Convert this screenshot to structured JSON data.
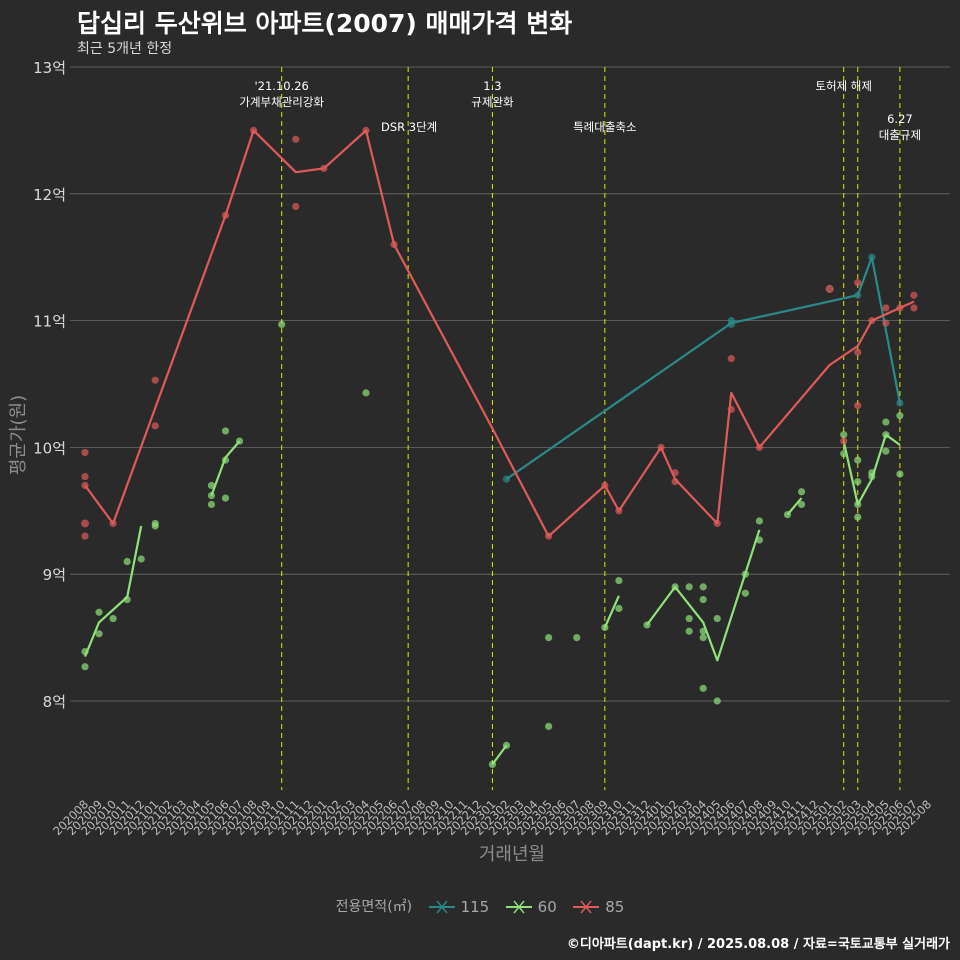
{
  "header": {
    "title": "답십리 두산위브 아파트(2007) 매매가격 변화",
    "subtitle": "최근 5개년 한정"
  },
  "footer": {
    "caption": "©디아파트(dapt.kr) / 2025.08.08 / 자료=국토교통부 실거래가"
  },
  "legend": {
    "title": "전용면적(㎡)",
    "entries": [
      {
        "label": "115",
        "color": "#2a8a8a"
      },
      {
        "label": "60",
        "color": "#8fe27a"
      },
      {
        "label": "85",
        "color": "#e05a5a"
      }
    ]
  },
  "chart_data": {
    "type": "line",
    "title": "답십리 두산위브 아파트(2007) 매매가격 변화",
    "subtitle": "최근 5개년 한정",
    "xlabel": "거래년월",
    "ylabel": "평균가(원)",
    "ylim": [
      7.3,
      13.0
    ],
    "y_ticks": [
      8,
      9,
      10,
      11,
      12,
      13
    ],
    "y_tick_labels": [
      "8억",
      "9억",
      "10억",
      "11억",
      "12억",
      "13억"
    ],
    "categories": [
      "202008",
      "202009",
      "202010",
      "202011",
      "202012",
      "202101",
      "202102",
      "202103",
      "202104",
      "202105",
      "202106",
      "202107",
      "202108",
      "202109",
      "202110",
      "202111",
      "202112",
      "202201",
      "202202",
      "202203",
      "202204",
      "202205",
      "202206",
      "202207",
      "202208",
      "202209",
      "202210",
      "202211",
      "202212",
      "202301",
      "202302",
      "202303",
      "202304",
      "202305",
      "202306",
      "202307",
      "202308",
      "202309",
      "202310",
      "202311",
      "202312",
      "202401",
      "202402",
      "202403",
      "202404",
      "202405",
      "202406",
      "202407",
      "202408",
      "202409",
      "202410",
      "202411",
      "202412",
      "202501",
      "202502",
      "202503",
      "202504",
      "202505",
      "202506",
      "202507",
      "202508"
    ],
    "grid": true,
    "legend_position": "bottom",
    "events": [
      {
        "month": "202110",
        "label": "'21.10.26\n가계부채관리강화",
        "row": 1
      },
      {
        "month": "202207",
        "label": "DSR 3단계",
        "row": 2
      },
      {
        "month": "202301",
        "label": "1.3\n규제완화",
        "row": 1
      },
      {
        "month": "202309",
        "label": "특례대출축소",
        "row": 2
      },
      {
        "month": "202502",
        "label": "토허제 해제",
        "row": 1
      },
      {
        "month": "202503",
        "label": "",
        "row": 0
      },
      {
        "month": "202506",
        "label": "6.27\n대출규제",
        "row": 3
      }
    ],
    "series": [
      {
        "name": "115",
        "color": "#2a8a8a",
        "segments": [
          [
            [
              "202302",
              9.75
            ],
            [
              "202406",
              10.98
            ],
            [
              "202503",
              11.2
            ],
            [
              "202504",
              11.5
            ],
            [
              "202506",
              10.35
            ]
          ]
        ],
        "points": [
          [
            "202302",
            9.75
          ],
          [
            "202406",
            11.0
          ],
          [
            "202406",
            10.97
          ],
          [
            "202503",
            11.2
          ],
          [
            "202504",
            11.5
          ],
          [
            "202506",
            10.35
          ]
        ],
        "cross_marks": [
          [
            "202501",
            11.25
          ]
        ]
      },
      {
        "name": "60",
        "color": "#8fe27a",
        "segments": [
          [
            [
              "202008",
              8.35
            ],
            [
              "202009",
              8.62
            ],
            [
              "202011",
              8.82
            ],
            [
              "202012",
              9.38
            ]
          ],
          [
            [
              "202105",
              9.62
            ],
            [
              "202106",
              9.92
            ],
            [
              "202107",
              10.05
            ]
          ],
          [
            [
              "202301",
              7.5
            ],
            [
              "202302",
              7.65
            ]
          ],
          [
            [
              "202309",
              8.58
            ],
            [
              "202310",
              8.83
            ]
          ],
          [
            [
              "202312",
              8.6
            ],
            [
              "202402",
              8.9
            ],
            [
              "202404",
              8.62
            ],
            [
              "202405",
              8.32
            ],
            [
              "202408",
              9.35
            ]
          ],
          [
            [
              "202410",
              9.47
            ],
            [
              "202411",
              9.6
            ]
          ],
          [
            [
              "202502",
              10.05
            ],
            [
              "202503",
              9.55
            ],
            [
              "202504",
              9.75
            ],
            [
              "202505",
              10.1
            ],
            [
              "202506",
              10.02
            ]
          ]
        ],
        "points": [
          [
            "202008",
            8.39
          ],
          [
            "202008",
            8.27
          ],
          [
            "202009",
            8.7
          ],
          [
            "202009",
            8.53
          ],
          [
            "202010",
            8.65
          ],
          [
            "202011",
            9.1
          ],
          [
            "202011",
            8.8
          ],
          [
            "202012",
            9.12
          ],
          [
            "202101",
            9.4
          ],
          [
            "202101",
            9.38
          ],
          [
            "202105",
            9.55
          ],
          [
            "202105",
            9.62
          ],
          [
            "202105",
            9.7
          ],
          [
            "202106",
            9.6
          ],
          [
            "202106",
            9.9
          ],
          [
            "202106",
            10.13
          ],
          [
            "202107",
            10.05
          ],
          [
            "202110",
            10.97
          ],
          [
            "202204",
            10.43
          ],
          [
            "202301",
            7.5
          ],
          [
            "202302",
            7.65
          ],
          [
            "202305",
            8.5
          ],
          [
            "202305",
            7.8
          ],
          [
            "202307",
            8.5
          ],
          [
            "202309",
            8.58
          ],
          [
            "202310",
            8.95
          ],
          [
            "202310",
            8.73
          ],
          [
            "202312",
            8.6
          ],
          [
            "202402",
            8.9
          ],
          [
            "202403",
            8.9
          ],
          [
            "202403",
            8.65
          ],
          [
            "202403",
            8.55
          ],
          [
            "202404",
            8.9
          ],
          [
            "202404",
            8.8
          ],
          [
            "202404",
            8.55
          ],
          [
            "202404",
            8.5
          ],
          [
            "202404",
            8.1
          ],
          [
            "202405",
            8.65
          ],
          [
            "202405",
            8.0
          ],
          [
            "202407",
            9.0
          ],
          [
            "202407",
            8.85
          ],
          [
            "202408",
            9.42
          ],
          [
            "202408",
            9.27
          ],
          [
            "202410",
            9.47
          ],
          [
            "202411",
            9.65
          ],
          [
            "202411",
            9.55
          ],
          [
            "202502",
            10.1
          ],
          [
            "202502",
            9.95
          ],
          [
            "202503",
            9.55
          ],
          [
            "202503",
            9.9
          ],
          [
            "202503",
            9.73
          ],
          [
            "202503",
            9.45
          ],
          [
            "202504",
            9.8
          ],
          [
            "202504",
            9.77
          ],
          [
            "202505",
            10.2
          ],
          [
            "202505",
            10.1
          ],
          [
            "202505",
            9.97
          ],
          [
            "202506",
            10.25
          ],
          [
            "202506",
            9.79
          ]
        ],
        "cross_marks": []
      },
      {
        "name": "85",
        "color": "#e05a5a",
        "segments": [
          [
            [
              "202008",
              9.7
            ],
            [
              "202010",
              9.4
            ],
            [
              "202106",
              11.83
            ],
            [
              "202108",
              12.5
            ],
            [
              "202111",
              12.17
            ],
            [
              "202201",
              12.2
            ],
            [
              "202204",
              12.5
            ],
            [
              "202206",
              11.6
            ],
            [
              "202301",
              10.15
            ],
            [
              "202305",
              9.3
            ],
            [
              "202309",
              9.7
            ],
            [
              "202310",
              9.5
            ],
            [
              "202401",
              10.0
            ],
            [
              "202402",
              9.75
            ],
            [
              "202405",
              9.4
            ],
            [
              "202406",
              10.43
            ],
            [
              "202408",
              10.0
            ],
            [
              "202501",
              10.65
            ],
            [
              "202503",
              10.8
            ],
            [
              "202504",
              11.0
            ],
            [
              "202506",
              11.1
            ],
            [
              "202507",
              11.15
            ]
          ]
        ],
        "points": [
          [
            "202008",
            9.96
          ],
          [
            "202008",
            9.77
          ],
          [
            "202008",
            9.7
          ],
          [
            "202008",
            9.3
          ],
          [
            "202010",
            9.4
          ],
          [
            "202101",
            10.53
          ],
          [
            "202101",
            10.17
          ],
          [
            "202106",
            11.83
          ],
          [
            "202108",
            12.5
          ],
          [
            "202111",
            12.43
          ],
          [
            "202111",
            11.9
          ],
          [
            "202201",
            12.2
          ],
          [
            "202204",
            12.5
          ],
          [
            "202206",
            11.6
          ],
          [
            "202305",
            9.3
          ],
          [
            "202309",
            9.7
          ],
          [
            "202310",
            9.5
          ],
          [
            "202401",
            10.0
          ],
          [
            "202402",
            9.8
          ],
          [
            "202402",
            9.73
          ],
          [
            "202405",
            9.4
          ],
          [
            "202406",
            10.7
          ],
          [
            "202406",
            10.3
          ],
          [
            "202408",
            10.0
          ],
          [
            "202502",
            10.05
          ],
          [
            "202503",
            11.3
          ],
          [
            "202503",
            10.75
          ],
          [
            "202503",
            10.33
          ],
          [
            "202504",
            11.0
          ],
          [
            "202505",
            11.1
          ],
          [
            "202505",
            10.98
          ],
          [
            "202506",
            11.1
          ],
          [
            "202507",
            11.2
          ],
          [
            "202507",
            11.1
          ]
        ],
        "cross_marks": [
          [
            "202008",
            9.4
          ],
          [
            "202501",
            11.25
          ]
        ]
      }
    ]
  }
}
